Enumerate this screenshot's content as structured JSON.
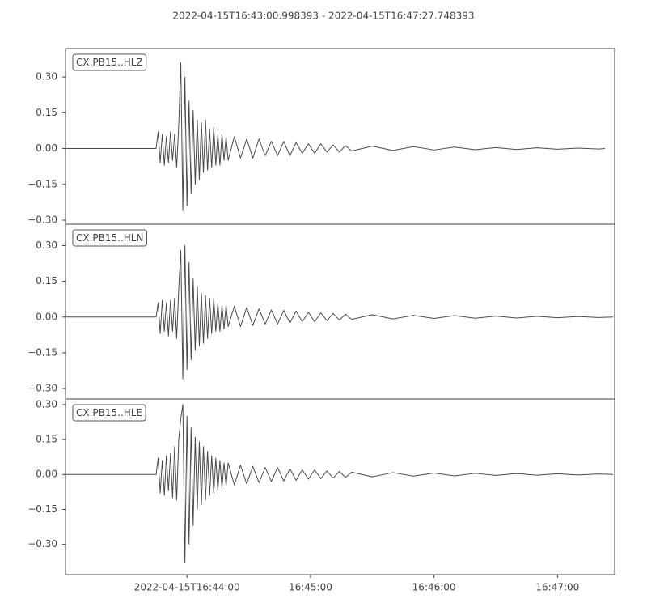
{
  "chart_data": [
    {
      "type": "line",
      "title": "2022-04-15T16:43:00.998393  -  2022-04-15T16:47:27.748393",
      "x": [
        "2022-04-15T16:43:01",
        "2022-04-15T16:43:45",
        "2022-04-15T16:43:46",
        "2022-04-15T16:43:47",
        "2022-04-15T16:43:48",
        "2022-04-15T16:43:49",
        "2022-04-15T16:43:50",
        "2022-04-15T16:43:51",
        "2022-04-15T16:43:52",
        "2022-04-15T16:43:53",
        "2022-04-15T16:43:54",
        "2022-04-15T16:43:55",
        "2022-04-15T16:43:56",
        "2022-04-15T16:43:57",
        "2022-04-15T16:43:58",
        "2022-04-15T16:43:59",
        "2022-04-15T16:44:00",
        "2022-04-15T16:44:01",
        "2022-04-15T16:44:02",
        "2022-04-15T16:44:03",
        "2022-04-15T16:44:04",
        "2022-04-15T16:44:05",
        "2022-04-15T16:44:06",
        "2022-04-15T16:44:07",
        "2022-04-15T16:44:08",
        "2022-04-15T16:44:09",
        "2022-04-15T16:44:10",
        "2022-04-15T16:44:11",
        "2022-04-15T16:44:12",
        "2022-04-15T16:44:13",
        "2022-04-15T16:44:14",
        "2022-04-15T16:44:15",
        "2022-04-15T16:44:16",
        "2022-04-15T16:44:17",
        "2022-04-15T16:44:18",
        "2022-04-15T16:44:19",
        "2022-04-15T16:44:20",
        "2022-04-15T16:44:23",
        "2022-04-15T16:44:26",
        "2022-04-15T16:44:29",
        "2022-04-15T16:44:32",
        "2022-04-15T16:44:35",
        "2022-04-15T16:44:38",
        "2022-04-15T16:44:41",
        "2022-04-15T16:44:44",
        "2022-04-15T16:44:47",
        "2022-04-15T16:44:50",
        "2022-04-15T16:44:53",
        "2022-04-15T16:44:56",
        "2022-04-15T16:44:59",
        "2022-04-15T16:45:02",
        "2022-04-15T16:45:05",
        "2022-04-15T16:45:08",
        "2022-04-15T16:45:11",
        "2022-04-15T16:45:14",
        "2022-04-15T16:45:17",
        "2022-04-15T16:45:20",
        "2022-04-15T16:45:30",
        "2022-04-15T16:45:40",
        "2022-04-15T16:45:50",
        "2022-04-15T16:46:00",
        "2022-04-15T16:46:10",
        "2022-04-15T16:46:20",
        "2022-04-15T16:46:30",
        "2022-04-15T16:46:40",
        "2022-04-15T16:46:50",
        "2022-04-15T16:47:00",
        "2022-04-15T16:47:10",
        "2022-04-15T16:47:20",
        "2022-04-15T16:47:23"
      ],
      "xlim": [
        "2022-04-15T16:43:00.998393",
        "2022-04-15T16:47:27.748393"
      ],
      "series": [
        {
          "name": "CX.PB15..HLZ",
          "color": "#4a4a4a",
          "values": [
            0,
            0,
            0.07,
            -0.06,
            0.06,
            -0.07,
            0.05,
            -0.06,
            0.07,
            -0.05,
            0.06,
            -0.08,
            0.1,
            0.36,
            -0.26,
            0.3,
            -0.24,
            0.2,
            -0.19,
            0.16,
            -0.15,
            0.12,
            -0.13,
            0.11,
            -0.1,
            0.12,
            -0.09,
            0.08,
            -0.08,
            0.09,
            -0.07,
            0.06,
            -0.07,
            0.06,
            -0.05,
            0.05,
            -0.05,
            0.05,
            -0.04,
            0.04,
            -0.04,
            0.04,
            -0.03,
            0.03,
            -0.03,
            0.03,
            -0.03,
            0.025,
            -0.02,
            0.02,
            -0.02,
            0.02,
            -0.015,
            0.015,
            -0.015,
            0.012,
            -0.01,
            0.01,
            -0.008,
            0.008,
            -0.006,
            0.006,
            -0.005,
            0.004,
            -0.004,
            0.003,
            -0.003,
            0.002,
            -0.002,
            0
          ]
        }
      ],
      "ylim": [
        -0.317,
        0.419
      ],
      "yticks": [
        {
          "value": -0.3,
          "label": "−0.30"
        },
        {
          "value": -0.15,
          "label": "−0.15"
        },
        {
          "value": 0,
          "label": "0.00"
        },
        {
          "value": 0.15,
          "label": "0.15"
        },
        {
          "value": 0.3,
          "label": "0.30"
        }
      ]
    },
    {
      "type": "line",
      "x": [
        "2022-04-15T16:43:01",
        "2022-04-15T16:43:45",
        "2022-04-15T16:43:46",
        "2022-04-15T16:43:47",
        "2022-04-15T16:43:48",
        "2022-04-15T16:43:49",
        "2022-04-15T16:43:50",
        "2022-04-15T16:43:51",
        "2022-04-15T16:43:52",
        "2022-04-15T16:43:53",
        "2022-04-15T16:43:54",
        "2022-04-15T16:43:55",
        "2022-04-15T16:43:56",
        "2022-04-15T16:43:57",
        "2022-04-15T16:43:58",
        "2022-04-15T16:43:59",
        "2022-04-15T16:44:00",
        "2022-04-15T16:44:01",
        "2022-04-15T16:44:02",
        "2022-04-15T16:44:03",
        "2022-04-15T16:44:04",
        "2022-04-15T16:44:05",
        "2022-04-15T16:44:06",
        "2022-04-15T16:44:07",
        "2022-04-15T16:44:08",
        "2022-04-15T16:44:09",
        "2022-04-15T16:44:10",
        "2022-04-15T16:44:11",
        "2022-04-15T16:44:12",
        "2022-04-15T16:44:13",
        "2022-04-15T16:44:14",
        "2022-04-15T16:44:15",
        "2022-04-15T16:44:16",
        "2022-04-15T16:44:17",
        "2022-04-15T16:44:18",
        "2022-04-15T16:44:19",
        "2022-04-15T16:44:20",
        "2022-04-15T16:44:23",
        "2022-04-15T16:44:26",
        "2022-04-15T16:44:29",
        "2022-04-15T16:44:32",
        "2022-04-15T16:44:35",
        "2022-04-15T16:44:38",
        "2022-04-15T16:44:41",
        "2022-04-15T16:44:44",
        "2022-04-15T16:44:47",
        "2022-04-15T16:44:50",
        "2022-04-15T16:44:53",
        "2022-04-15T16:44:56",
        "2022-04-15T16:44:59",
        "2022-04-15T16:45:02",
        "2022-04-15T16:45:05",
        "2022-04-15T16:45:08",
        "2022-04-15T16:45:11",
        "2022-04-15T16:45:14",
        "2022-04-15T16:45:17",
        "2022-04-15T16:45:20",
        "2022-04-15T16:45:30",
        "2022-04-15T16:45:40",
        "2022-04-15T16:45:50",
        "2022-04-15T16:46:00",
        "2022-04-15T16:46:10",
        "2022-04-15T16:46:20",
        "2022-04-15T16:46:30",
        "2022-04-15T16:46:40",
        "2022-04-15T16:46:50",
        "2022-04-15T16:47:00",
        "2022-04-15T16:47:10",
        "2022-04-15T16:47:20",
        "2022-04-15T16:47:27"
      ],
      "xlim": [
        "2022-04-15T16:43:00.998393",
        "2022-04-15T16:47:27.748393"
      ],
      "series": [
        {
          "name": "CX.PB15..HLN",
          "color": "#4a4a4a",
          "values": [
            0,
            0,
            0.06,
            -0.07,
            0.07,
            -0.06,
            0.06,
            -0.08,
            0.07,
            -0.06,
            0.08,
            -0.09,
            0.12,
            0.28,
            -0.26,
            0.3,
            -0.22,
            0.23,
            -0.18,
            0.16,
            -0.14,
            0.13,
            -0.12,
            0.1,
            -0.11,
            0.09,
            -0.09,
            0.08,
            -0.07,
            0.08,
            -0.06,
            0.06,
            -0.06,
            0.05,
            -0.05,
            0.05,
            -0.04,
            0.045,
            -0.04,
            0.04,
            -0.035,
            0.035,
            -0.03,
            0.03,
            -0.03,
            0.028,
            -0.025,
            0.025,
            -0.02,
            0.02,
            -0.02,
            0.018,
            -0.015,
            0.015,
            -0.013,
            0.012,
            -0.01,
            0.01,
            -0.008,
            0.007,
            -0.006,
            0.006,
            -0.005,
            0.004,
            -0.004,
            0.003,
            -0.003,
            0.002,
            -0.002,
            0
          ]
        }
      ],
      "ylim": [
        -0.344,
        0.39
      ],
      "yticks": [
        {
          "value": -0.3,
          "label": "−0.30"
        },
        {
          "value": -0.15,
          "label": "−0.15"
        },
        {
          "value": 0,
          "label": "0.00"
        },
        {
          "value": 0.15,
          "label": "0.15"
        },
        {
          "value": 0.3,
          "label": "0.30"
        }
      ]
    },
    {
      "type": "line",
      "x": [
        "2022-04-15T16:43:01",
        "2022-04-15T16:43:45",
        "2022-04-15T16:43:46",
        "2022-04-15T16:43:47",
        "2022-04-15T16:43:48",
        "2022-04-15T16:43:49",
        "2022-04-15T16:43:50",
        "2022-04-15T16:43:51",
        "2022-04-15T16:43:52",
        "2022-04-15T16:43:53",
        "2022-04-15T16:43:54",
        "2022-04-15T16:43:55",
        "2022-04-15T16:43:56",
        "2022-04-15T16:43:57",
        "2022-04-15T16:43:58",
        "2022-04-15T16:43:59",
        "2022-04-15T16:44:00",
        "2022-04-15T16:44:01",
        "2022-04-15T16:44:02",
        "2022-04-15T16:44:03",
        "2022-04-15T16:44:04",
        "2022-04-15T16:44:05",
        "2022-04-15T16:44:06",
        "2022-04-15T16:44:07",
        "2022-04-15T16:44:08",
        "2022-04-15T16:44:09",
        "2022-04-15T16:44:10",
        "2022-04-15T16:44:11",
        "2022-04-15T16:44:12",
        "2022-04-15T16:44:13",
        "2022-04-15T16:44:14",
        "2022-04-15T16:44:15",
        "2022-04-15T16:44:16",
        "2022-04-15T16:44:17",
        "2022-04-15T16:44:18",
        "2022-04-15T16:44:19",
        "2022-04-15T16:44:20",
        "2022-04-15T16:44:23",
        "2022-04-15T16:44:26",
        "2022-04-15T16:44:29",
        "2022-04-15T16:44:32",
        "2022-04-15T16:44:35",
        "2022-04-15T16:44:38",
        "2022-04-15T16:44:41",
        "2022-04-15T16:44:44",
        "2022-04-15T16:44:47",
        "2022-04-15T16:44:50",
        "2022-04-15T16:44:53",
        "2022-04-15T16:44:56",
        "2022-04-15T16:44:59",
        "2022-04-15T16:45:02",
        "2022-04-15T16:45:05",
        "2022-04-15T16:45:08",
        "2022-04-15T16:45:11",
        "2022-04-15T16:45:14",
        "2022-04-15T16:45:17",
        "2022-04-15T16:45:20",
        "2022-04-15T16:45:30",
        "2022-04-15T16:45:40",
        "2022-04-15T16:45:50",
        "2022-04-15T16:46:00",
        "2022-04-15T16:46:10",
        "2022-04-15T16:46:20",
        "2022-04-15T16:46:30",
        "2022-04-15T16:46:40",
        "2022-04-15T16:46:50",
        "2022-04-15T16:47:00",
        "2022-04-15T16:47:10",
        "2022-04-15T16:47:20",
        "2022-04-15T16:47:27"
      ],
      "xlim": [
        "2022-04-15T16:43:00.998393",
        "2022-04-15T16:47:27.748393"
      ],
      "xticks": [
        "2022-04-15T16:44:00",
        {
          "value": "2022-04-15T16:45:00",
          "label": "16:45:00"
        },
        {
          "value": "2022-04-15T16:46:00",
          "label": "16:46:00"
        },
        {
          "value": "2022-04-15T16:47:00",
          "label": "16:47:00"
        }
      ],
      "series": [
        {
          "name": "CX.PB15..HLE",
          "color": "#4a4a4a",
          "values": [
            0,
            0,
            0.07,
            -0.08,
            0.06,
            -0.09,
            0.08,
            -0.07,
            0.09,
            -0.1,
            0.12,
            -0.11,
            0.15,
            0.24,
            0.3,
            -0.38,
            0.25,
            -0.3,
            0.2,
            -0.22,
            0.16,
            -0.15,
            0.14,
            -0.13,
            0.12,
            -0.11,
            0.1,
            -0.09,
            0.08,
            -0.08,
            0.07,
            -0.07,
            0.06,
            -0.06,
            0.05,
            -0.05,
            0.05,
            -0.045,
            0.04,
            -0.04,
            0.035,
            -0.035,
            0.03,
            -0.03,
            0.03,
            -0.028,
            0.025,
            -0.025,
            0.02,
            -0.02,
            0.02,
            -0.018,
            0.015,
            -0.015,
            0.013,
            -0.012,
            0.01,
            -0.01,
            0.008,
            -0.007,
            0.006,
            -0.006,
            0.005,
            -0.004,
            0.004,
            -0.003,
            0.003,
            -0.002,
            0.002,
            0
          ]
        }
      ],
      "ylim": [
        -0.43,
        0.324
      ],
      "yticks": [
        {
          "value": -0.3,
          "label": "−0.30"
        },
        {
          "value": -0.15,
          "label": "−0.15"
        },
        {
          "value": 0,
          "label": "0.00"
        },
        {
          "value": 0.15,
          "label": "0.15"
        },
        {
          "value": 0.3,
          "label": "0.30"
        }
      ]
    }
  ]
}
